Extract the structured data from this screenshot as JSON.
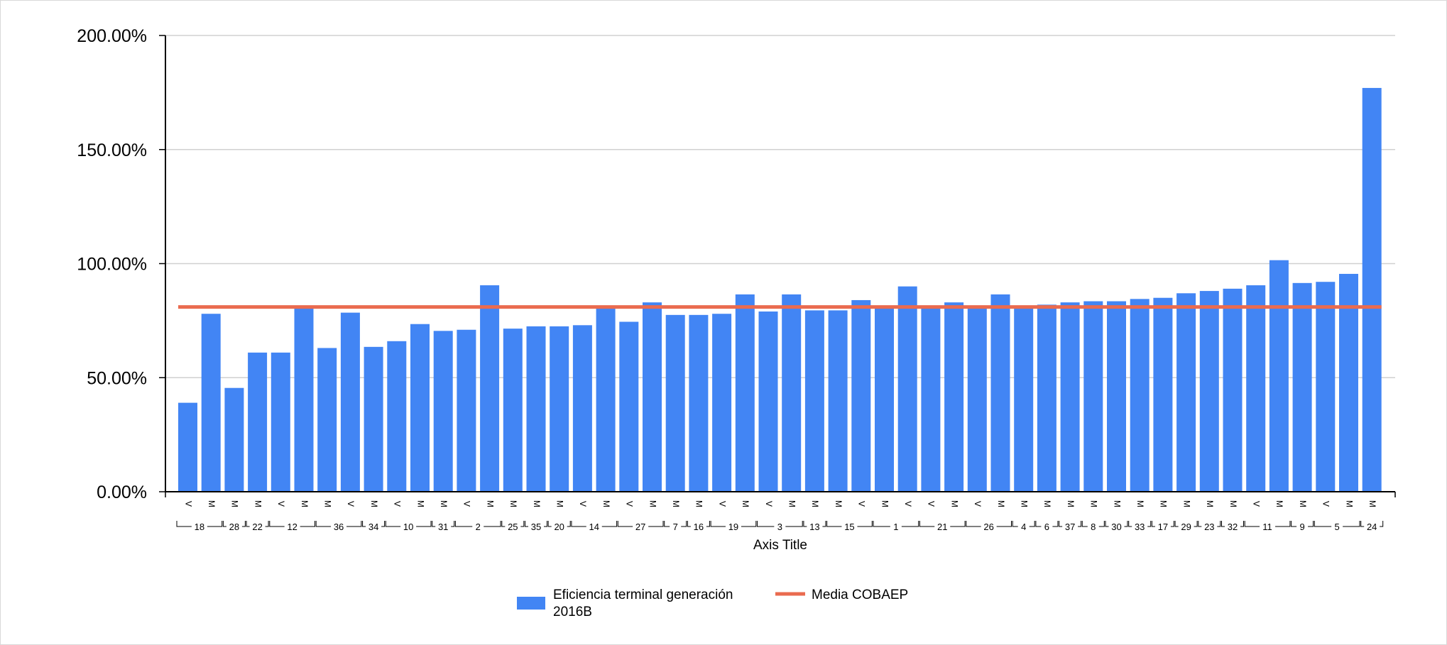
{
  "chart_data": {
    "type": "bar",
    "ylim": [
      0,
      200
    ],
    "yticks": [
      "0.00%",
      "50.00%",
      "100.00%",
      "150.00%",
      "200.00%"
    ],
    "ytick_values": [
      0,
      50,
      100,
      150,
      200
    ],
    "xlabel": "Axis Title",
    "grid": true,
    "legend_position": "bottom",
    "categories": [
      {
        "sub": "V",
        "group": "18"
      },
      {
        "sub": "M",
        "group": "18"
      },
      {
        "sub": "M",
        "group": "28"
      },
      {
        "sub": "M",
        "group": "22"
      },
      {
        "sub": "V",
        "group": "12"
      },
      {
        "sub": "M",
        "group": "12"
      },
      {
        "sub": "M",
        "group": "36"
      },
      {
        "sub": "V",
        "group": "36"
      },
      {
        "sub": "M",
        "group": "34"
      },
      {
        "sub": "V",
        "group": "10"
      },
      {
        "sub": "M",
        "group": "10"
      },
      {
        "sub": "M",
        "group": "31"
      },
      {
        "sub": "V",
        "group": "2"
      },
      {
        "sub": "M",
        "group": "2"
      },
      {
        "sub": "M",
        "group": "25"
      },
      {
        "sub": "M",
        "group": "35"
      },
      {
        "sub": "M",
        "group": "20"
      },
      {
        "sub": "V",
        "group": "14"
      },
      {
        "sub": "M",
        "group": "14"
      },
      {
        "sub": "V",
        "group": "27"
      },
      {
        "sub": "M",
        "group": "27"
      },
      {
        "sub": "M",
        "group": "7"
      },
      {
        "sub": "M",
        "group": "16"
      },
      {
        "sub": "V",
        "group": "19"
      },
      {
        "sub": "M",
        "group": "19"
      },
      {
        "sub": "V",
        "group": "3"
      },
      {
        "sub": "M",
        "group": "3"
      },
      {
        "sub": "M",
        "group": "13"
      },
      {
        "sub": "M",
        "group": "15"
      },
      {
        "sub": "V",
        "group": "15"
      },
      {
        "sub": "M",
        "group": "1"
      },
      {
        "sub": "V",
        "group": "1"
      },
      {
        "sub": "V",
        "group": "21"
      },
      {
        "sub": "M",
        "group": "21"
      },
      {
        "sub": "V",
        "group": "26"
      },
      {
        "sub": "M",
        "group": "26"
      },
      {
        "sub": "M",
        "group": "4"
      },
      {
        "sub": "M",
        "group": "6"
      },
      {
        "sub": "M",
        "group": "37"
      },
      {
        "sub": "M",
        "group": "8"
      },
      {
        "sub": "M",
        "group": "30"
      },
      {
        "sub": "M",
        "group": "33"
      },
      {
        "sub": "M",
        "group": "17"
      },
      {
        "sub": "M",
        "group": "29"
      },
      {
        "sub": "M",
        "group": "23"
      },
      {
        "sub": "M",
        "group": "32"
      },
      {
        "sub": "V",
        "group": "11"
      },
      {
        "sub": "M",
        "group": "11"
      },
      {
        "sub": "M",
        "group": "9"
      },
      {
        "sub": "V",
        "group": "5"
      },
      {
        "sub": "M",
        "group": "5"
      },
      {
        "sub": "M",
        "group": "24"
      }
    ],
    "series": [
      {
        "name": "Eficiencia terminal generación 2016B",
        "type": "bar",
        "color": "#4285f4",
        "values": [
          39,
          78,
          45.5,
          61,
          61,
          81,
          63,
          78.5,
          63.5,
          66,
          73.5,
          70.5,
          71,
          90.5,
          71.5,
          72.5,
          72.5,
          73,
          80.5,
          74.5,
          83,
          77.5,
          77.5,
          78,
          86.5,
          79,
          86.5,
          79.5,
          79.5,
          84,
          81.5,
          90,
          81.5,
          83,
          81,
          86.5,
          81.5,
          82,
          83,
          83.5,
          83.5,
          84.5,
          85,
          87,
          88,
          89,
          90.5,
          101.5,
          91.5,
          92,
          95.5,
          177
        ]
      },
      {
        "name": "Media COBAEP",
        "type": "line",
        "color": "#ea6b4f",
        "value": 81
      }
    ]
  }
}
